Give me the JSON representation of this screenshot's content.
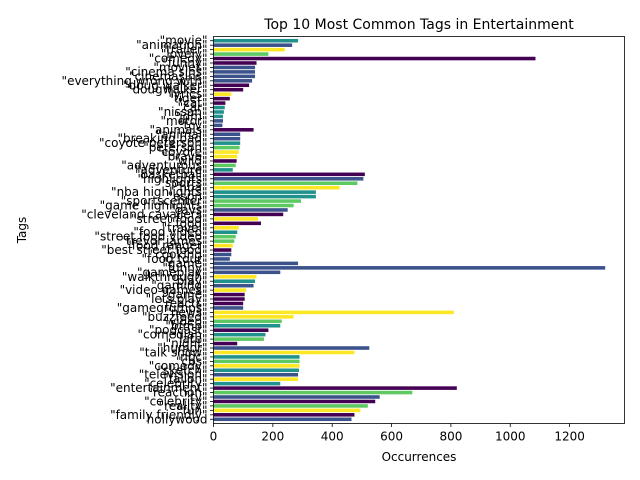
{
  "chart_data": {
    "type": "bar",
    "orientation": "horizontal",
    "title": "Top 10 Most Common Tags in Entertainment",
    "xlabel": "Occurrences",
    "ylabel": "Tags",
    "xlim": [
      0,
      1385
    ],
    "xticks": [
      0,
      200,
      400,
      600,
      800,
      1000,
      1200
    ],
    "grid": false,
    "legend": "none",
    "palette": [
      "#440154",
      "#3b528b",
      "#21918c",
      "#5ec962",
      "#fde725"
    ],
    "bars": [
      {
        "label": "\"movie\"",
        "value": 285,
        "color": "#21918c"
      },
      {
        "label": "\"animation\"",
        "value": 265,
        "color": "#3b528b"
      },
      {
        "label": "\"trailer\"",
        "value": 240,
        "color": "#fde725"
      },
      {
        "label": "\"lovely\"",
        "value": 185,
        "color": "#5ec962"
      },
      {
        "label": "\"comedy\"",
        "value": 1085,
        "color": "#440154"
      },
      {
        "label": "\"funny\"",
        "value": 145,
        "color": "#440154"
      },
      {
        "label": "\"movies\"",
        "value": 140,
        "color": "#3b528b"
      },
      {
        "label": "\"cinema sins\"",
        "value": 140,
        "color": "#3b528b"
      },
      {
        "label": "\"cinemasins\"",
        "value": 140,
        "color": "#3b528b"
      },
      {
        "label": "\"everything wrong with\"",
        "value": 130,
        "color": "#3b528b"
      },
      {
        "label": "\"doug walker\"",
        "value": 120,
        "color": "#440154"
      },
      {
        "label": "\"dougwalker\"",
        "value": 100,
        "color": "#440154"
      },
      {
        "label": "\"lyrics\"",
        "value": 60,
        "color": "#fde725"
      },
      {
        "label": "\"tiger\"",
        "value": 55,
        "color": "#440154"
      },
      {
        "label": "\"cat\"",
        "value": 40,
        "color": "#440154"
      },
      {
        "label": "\"car\"",
        "value": 38,
        "color": "#21918c"
      },
      {
        "label": "\"nissan\"",
        "value": 35,
        "color": "#21918c"
      },
      {
        "label": "\"jdm\"",
        "value": 32,
        "color": "#21918c"
      },
      {
        "label": "\"motor\"",
        "value": 32,
        "color": "#3b528b"
      },
      {
        "label": "\"tcv\"",
        "value": 30,
        "color": "#3b528b"
      },
      {
        "label": "\"animals\"",
        "value": 135,
        "color": "#440154"
      },
      {
        "label": "\"animal\"",
        "value": 90,
        "color": "#3b528b"
      },
      {
        "label": "\"breaking bad\"",
        "value": 90,
        "color": "#3b528b"
      },
      {
        "label": "\"coyote peterson\"",
        "value": 90,
        "color": "#21918c"
      },
      {
        "label": "\"peterson\"",
        "value": 88,
        "color": "#5ec962"
      },
      {
        "label": "\"coyote\"",
        "value": 85,
        "color": "#fde725"
      },
      {
        "label": "\"brave\"",
        "value": 80,
        "color": "#fde725"
      },
      {
        "label": "\"wild\"",
        "value": 78,
        "color": "#440154"
      },
      {
        "label": "\"adventurous\"",
        "value": 75,
        "color": "#5ec962"
      },
      {
        "label": "\"adventure\"",
        "value": 65,
        "color": "#21918c"
      },
      {
        "label": "\"basketball\"",
        "value": 510,
        "color": "#440154"
      },
      {
        "label": "\"highlights\"",
        "value": 505,
        "color": "#3b528b"
      },
      {
        "label": "\"sports\"",
        "value": 485,
        "color": "#5ec962"
      },
      {
        "label": "\"nba\"",
        "value": 425,
        "color": "#fde725"
      },
      {
        "label": "\"nba highlights\"",
        "value": 345,
        "color": "#21918c"
      },
      {
        "label": "\"espn\"",
        "value": 345,
        "color": "#21918c"
      },
      {
        "label": "\"sportscenter\"",
        "value": 295,
        "color": "#5ec962"
      },
      {
        "label": "\"game highlights\"",
        "value": 270,
        "color": "#5ec962"
      },
      {
        "label": "\"cavs\"",
        "value": 250,
        "color": "#3b528b"
      },
      {
        "label": "\"cleveland cavaliers\"",
        "value": 235,
        "color": "#440154"
      },
      {
        "label": "\"street food\"",
        "value": 150,
        "color": "#fde725"
      },
      {
        "label": "\"food\"",
        "value": 160,
        "color": "#440154"
      },
      {
        "label": "\"travel\"",
        "value": 85,
        "color": "#fde725"
      },
      {
        "label": "\"food video\"",
        "value": 80,
        "color": "#21918c"
      },
      {
        "label": "\"street food video\"",
        "value": 75,
        "color": "#5ec962"
      },
      {
        "label": "\"trevor james\"",
        "value": 70,
        "color": "#5ec962"
      },
      {
        "label": "\"food ranger\"",
        "value": 65,
        "color": "#fde725"
      },
      {
        "label": "\"best street food\"",
        "value": 60,
        "color": "#440154"
      },
      {
        "label": "\"cooking\"",
        "value": 60,
        "color": "#3b528b"
      },
      {
        "label": "\"food tour\"",
        "value": 55,
        "color": "#3b528b"
      },
      {
        "label": "\"game\"",
        "value": 285,
        "color": "#3b528b"
      },
      {
        "label": "\"funny\"",
        "value": 1320,
        "color": "#3b528b"
      },
      {
        "label": "\"gameplay\"",
        "value": 225,
        "color": "#3b528b"
      },
      {
        "label": "\"walkthrough\"",
        "value": 145,
        "color": "#fde725"
      },
      {
        "label": "\"play\"",
        "value": 140,
        "color": "#21918c"
      },
      {
        "label": "\"gaming\"",
        "value": 135,
        "color": "#3b528b"
      },
      {
        "label": "\"video games\"",
        "value": 110,
        "color": "#fde725"
      },
      {
        "label": "\"game\"",
        "value": 105,
        "color": "#440154"
      },
      {
        "label": "\"lets play\"",
        "value": 105,
        "color": "#440154"
      },
      {
        "label": "\"reacts\"",
        "value": 100,
        "color": "#440154"
      },
      {
        "label": "\"gamegrumps\"",
        "value": 100,
        "color": "#3b528b"
      },
      {
        "label": "\"news\"",
        "value": 810,
        "color": "#fde725"
      },
      {
        "label": "\"buzzfeed\"",
        "value": 270,
        "color": "#fde725"
      },
      {
        "label": "\"video\"",
        "value": 230,
        "color": "#5ec962"
      },
      {
        "label": "\"bfmp\"",
        "value": 225,
        "color": "#21918c"
      },
      {
        "label": "\"podcast\"",
        "value": 185,
        "color": "#440154"
      },
      {
        "label": "\"comedian\"",
        "value": 175,
        "color": "#21918c"
      },
      {
        "label": "\"late\"",
        "value": 170,
        "color": "#5ec962"
      },
      {
        "label": "\"night\"",
        "value": 80,
        "color": "#440154"
      },
      {
        "label": "\"humor\"",
        "value": 525,
        "color": "#3b528b"
      },
      {
        "label": "\"talk show\"",
        "value": 475,
        "color": "#fde725"
      },
      {
        "label": "\"nbc\"",
        "value": 290,
        "color": "#21918c"
      },
      {
        "label": "\"cbs\"",
        "value": 290,
        "color": "#5ec962"
      },
      {
        "label": "\"comedy\"",
        "value": 290,
        "color": "#fde725"
      },
      {
        "label": "\"sketch\"",
        "value": 288,
        "color": "#21918c"
      },
      {
        "label": "\"television\"",
        "value": 285,
        "color": "#3b528b"
      },
      {
        "label": "\"fallon\"",
        "value": 285,
        "color": "#fde725"
      },
      {
        "label": "\"celebrity\"",
        "value": 225,
        "color": "#21918c"
      },
      {
        "label": "\"entertainment\"",
        "value": 820,
        "color": "#440154"
      },
      {
        "label": "\"reaction\"",
        "value": 670,
        "color": "#5ec962"
      },
      {
        "label": "\"tv\"",
        "value": 560,
        "color": "#3b528b"
      },
      {
        "label": "\"celebrity\"",
        "value": 545,
        "color": "#440154"
      },
      {
        "label": "\"reality\"",
        "value": 520,
        "color": "#5ec962"
      },
      {
        "label": "\"fun\"",
        "value": 495,
        "color": "#fde725"
      },
      {
        "label": "\"family friendly\"",
        "value": 475,
        "color": "#440154"
      },
      {
        "label": "hollywood",
        "value": 465,
        "color": "#3b528b"
      }
    ]
  }
}
